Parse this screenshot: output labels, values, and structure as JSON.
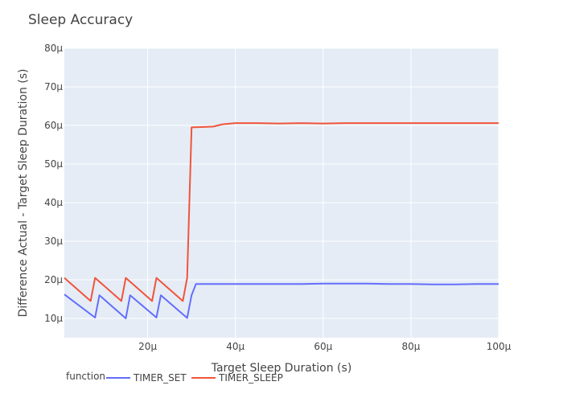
{
  "chart_data": {
    "type": "line",
    "title": "Sleep Accuracy",
    "xlabel": "Target Sleep Duration (s)",
    "ylabel": "Difference Actual - Target Sleep Duration (s)",
    "xlim": [
      1,
      100
    ],
    "ylim": [
      5,
      80
    ],
    "x_ticks": [
      20,
      40,
      60,
      80,
      100
    ],
    "x_tick_labels": [
      "20µ",
      "40µ",
      "60µ",
      "80µ",
      "100µ"
    ],
    "y_ticks": [
      10,
      20,
      30,
      40,
      50,
      60,
      70,
      80
    ],
    "y_tick_labels": [
      "10µ",
      "20µ",
      "30µ",
      "40µ",
      "50µ",
      "60µ",
      "70µ",
      "80µ"
    ],
    "legend_title": "function",
    "legend_position": "bottom-left",
    "background_color": "#e5ecf6",
    "grid": true,
    "series": [
      {
        "name": "TIMER_SET",
        "color": "#636efa",
        "x": [
          1,
          8,
          9,
          15,
          16,
          22,
          23,
          29,
          30,
          31,
          35,
          40,
          45,
          50,
          55,
          60,
          65,
          70,
          75,
          80,
          85,
          90,
          95,
          100
        ],
        "y": [
          16.2,
          10.2,
          16.0,
          10.0,
          16.0,
          10.2,
          16.0,
          10.1,
          16.0,
          18.9,
          18.9,
          18.9,
          18.9,
          18.9,
          18.9,
          19.0,
          19.0,
          19.0,
          18.9,
          18.9,
          18.8,
          18.8,
          18.9,
          18.9
        ]
      },
      {
        "name": "TIMER_SLEEP",
        "color": "#ef553b",
        "x": [
          1,
          7,
          8,
          14,
          15,
          21,
          22,
          28,
          29,
          30,
          33,
          35,
          37,
          40,
          45,
          50,
          55,
          60,
          65,
          70,
          75,
          80,
          85,
          90,
          95,
          100
        ],
        "y": [
          20.5,
          14.5,
          20.5,
          14.5,
          20.5,
          14.5,
          20.5,
          14.5,
          20.5,
          59.5,
          59.6,
          59.7,
          60.3,
          60.6,
          60.6,
          60.5,
          60.6,
          60.5,
          60.6,
          60.6,
          60.6,
          60.6,
          60.6,
          60.6,
          60.6,
          60.6
        ]
      }
    ]
  }
}
